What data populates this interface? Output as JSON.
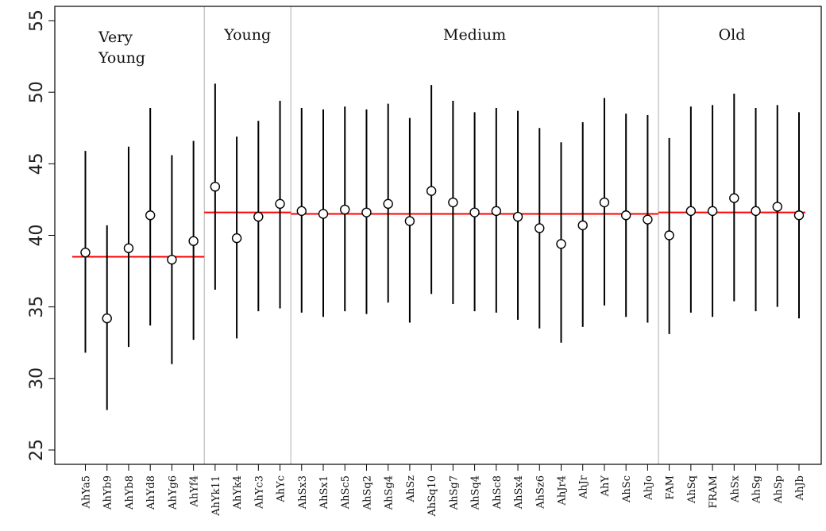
{
  "chart_data": {
    "type": "scatter",
    "title": "",
    "xlabel": "",
    "ylabel": "",
    "ylim": [
      24,
      56
    ],
    "yticks": [
      25,
      30,
      35,
      40,
      45,
      50,
      55
    ],
    "grid": false,
    "colors": {
      "points": "#000000",
      "mean_line": "#ff0000",
      "separator": "#bbbbbb",
      "frame": "#000000"
    },
    "groups": [
      {
        "name": "Very Young",
        "name_lines": [
          "Very",
          "Young"
        ],
        "mean": 38.5,
        "start": 0,
        "end": 5
      },
      {
        "name": "Young",
        "name_lines": [
          "Young"
        ],
        "mean": 41.6,
        "start": 6,
        "end": 9
      },
      {
        "name": "Medium",
        "name_lines": [
          "Medium"
        ],
        "mean": 41.5,
        "start": 10,
        "end": 26
      },
      {
        "name": "Old",
        "name_lines": [
          "Old"
        ],
        "mean": 41.6,
        "start": 27,
        "end": 33
      }
    ],
    "categories": [
      "AhYa5",
      "AhYb9",
      "AhYb8",
      "AhYd8",
      "AhYg6",
      "AhYf4",
      "AhYk11",
      "AhYk4",
      "AhYc3",
      "AhYc",
      "AhSx3",
      "AhSx1",
      "AhSc5",
      "AhSq2",
      "AhSg4",
      "AhSz",
      "AhSq10",
      "AhSg7",
      "AhSq4",
      "AhSc8",
      "AhSx4",
      "AhSz6",
      "AhJr4",
      "AhJr",
      "AhY",
      "AhSc",
      "AhJo",
      "FAM",
      "AhSq",
      "FRAM",
      "AhSx",
      "AhSg",
      "AhSp",
      "AhJb"
    ],
    "values": [
      38.8,
      34.2,
      39.1,
      41.4,
      38.3,
      39.6,
      43.4,
      39.8,
      41.3,
      42.2,
      41.7,
      41.5,
      41.8,
      41.6,
      42.2,
      41.0,
      43.1,
      42.3,
      41.6,
      41.7,
      41.3,
      40.5,
      39.4,
      40.7,
      42.3,
      41.4,
      41.1,
      40.0,
      41.7,
      41.7,
      42.6,
      41.7,
      42.0,
      41.4
    ],
    "lower": [
      31.8,
      27.8,
      32.2,
      33.7,
      31.0,
      32.7,
      36.2,
      32.8,
      34.7,
      34.9,
      34.6,
      34.3,
      34.7,
      34.5,
      35.3,
      33.9,
      35.9,
      35.2,
      34.7,
      34.6,
      34.1,
      33.5,
      32.5,
      33.6,
      35.1,
      34.3,
      33.9,
      33.1,
      34.6,
      34.3,
      35.4,
      34.7,
      35.0,
      34.2
    ],
    "upper": [
      45.9,
      40.7,
      46.2,
      48.9,
      45.6,
      46.6,
      50.6,
      46.9,
      48.0,
      49.4,
      48.9,
      48.8,
      49.0,
      48.8,
      49.2,
      48.2,
      50.5,
      49.4,
      48.6,
      48.9,
      48.7,
      47.5,
      46.5,
      47.9,
      49.6,
      48.5,
      48.4,
      46.8,
      49.0,
      49.1,
      49.9,
      48.9,
      49.1,
      48.6
    ]
  }
}
